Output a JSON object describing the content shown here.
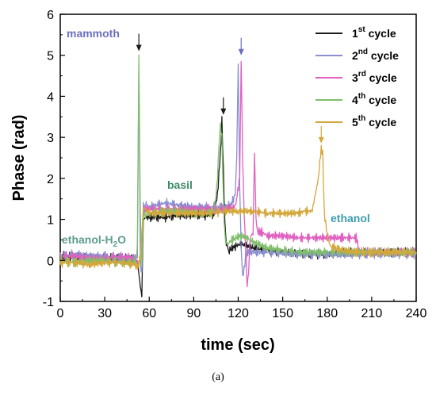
{
  "chart_data": {
    "type": "line",
    "xlabel": "time (sec)",
    "ylabel": "Phase (rad)",
    "xlim": [
      0,
      240
    ],
    "ylim": [
      -1,
      6
    ],
    "xticks": [
      0,
      30,
      60,
      90,
      120,
      150,
      180,
      210,
      240
    ],
    "yticks": [
      -1,
      0,
      1,
      2,
      3,
      4,
      5,
      6
    ],
    "panel_label": "(a)",
    "legend_position": "top-right",
    "series": [
      {
        "name": "1st cycle",
        "name_main": "1",
        "name_sup": "st",
        "name_rest": "cycle",
        "color": "#1a1a1a",
        "x": [
          0,
          10,
          20,
          30,
          40,
          50,
          52,
          53,
          54,
          55,
          56,
          58,
          60,
          70,
          80,
          90,
          100,
          104,
          106,
          108,
          109,
          110,
          111,
          112,
          114,
          118,
          122,
          126,
          130,
          140,
          150,
          160,
          170,
          180,
          190,
          200,
          210,
          220,
          230,
          240
        ],
        "y": [
          0.1,
          0.1,
          0.05,
          0.05,
          0.05,
          0.05,
          0.0,
          -0.3,
          -0.6,
          -0.85,
          1.0,
          1.05,
          1.05,
          1.05,
          1.1,
          1.1,
          1.1,
          1.15,
          1.6,
          2.6,
          3.4,
          2.2,
          0.9,
          0.4,
          0.25,
          0.35,
          0.4,
          0.35,
          0.3,
          0.25,
          0.2,
          0.18,
          0.15,
          0.15,
          0.2,
          0.2,
          0.2,
          0.2,
          0.2,
          0.2
        ]
      },
      {
        "name": "2nd cycle",
        "name_main": "2",
        "name_sup": "nd",
        "name_rest": "cycle",
        "color": "#8a8fd0",
        "x": [
          0,
          10,
          20,
          30,
          40,
          50,
          52,
          53,
          54,
          55,
          56,
          58,
          60,
          70,
          80,
          90,
          100,
          110,
          115,
          118,
          119,
          120,
          121,
          122,
          123,
          124,
          125,
          126,
          130,
          140,
          150,
          160,
          170,
          180,
          190,
          200,
          210,
          220,
          230,
          240
        ],
        "y": [
          0.1,
          0.15,
          0.1,
          0.1,
          0.05,
          0.05,
          0.1,
          4.8,
          0.0,
          -0.4,
          1.3,
          1.35,
          1.3,
          1.4,
          1.35,
          1.3,
          1.3,
          1.3,
          1.35,
          1.6,
          2.5,
          4.8,
          1.8,
          0.3,
          -0.4,
          -0.2,
          0.1,
          0.2,
          0.2,
          0.2,
          0.18,
          0.15,
          0.15,
          0.15,
          0.15,
          0.15,
          0.15,
          0.15,
          0.15,
          0.15
        ]
      },
      {
        "name": "3rd cycle",
        "name_main": "3",
        "name_sup": "rd",
        "name_rest": "cycle",
        "color": "#e060c0",
        "x": [
          0,
          10,
          20,
          30,
          40,
          50,
          52,
          53,
          54,
          55,
          56,
          58,
          60,
          70,
          80,
          90,
          100,
          110,
          118,
          121,
          122,
          123,
          124,
          125,
          126,
          127,
          128,
          129,
          130,
          131,
          132,
          133,
          135,
          140,
          150,
          160,
          170,
          180,
          190,
          200,
          201,
          205,
          210,
          220,
          230,
          240
        ],
        "y": [
          0.1,
          0.1,
          0.05,
          0.05,
          0.1,
          0.05,
          0.0,
          -0.1,
          0.1,
          0.5,
          1.2,
          1.25,
          1.25,
          1.25,
          1.25,
          1.25,
          1.25,
          1.25,
          1.3,
          2.0,
          4.9,
          2.5,
          1.2,
          0.3,
          -0.6,
          -0.3,
          0.5,
          0.6,
          0.6,
          2.6,
          1.0,
          0.7,
          0.7,
          0.6,
          0.6,
          0.55,
          0.55,
          0.55,
          0.55,
          0.55,
          0.25,
          0.2,
          0.2,
          0.2,
          0.2,
          0.2
        ]
      },
      {
        "name": "4th cycle",
        "name_main": "4",
        "name_sup": "th",
        "name_rest": "cycle",
        "color": "#7fbf6a",
        "x": [
          0,
          10,
          20,
          30,
          40,
          50,
          51,
          52,
          53,
          54,
          55,
          56,
          58,
          60,
          70,
          80,
          90,
          100,
          104,
          106,
          107,
          108,
          109,
          110,
          111,
          112,
          114,
          118,
          122,
          126,
          130,
          140,
          150,
          160,
          170,
          180,
          190,
          200,
          210,
          220,
          230,
          240
        ],
        "y": [
          0.0,
          -0.05,
          0.0,
          0.0,
          -0.05,
          -0.05,
          0.0,
          0.3,
          4.95,
          1.2,
          -0.1,
          1.1,
          1.15,
          1.15,
          1.2,
          1.2,
          1.15,
          1.15,
          1.2,
          2.0,
          2.8,
          3.3,
          3.0,
          1.5,
          0.6,
          0.4,
          0.45,
          0.55,
          0.6,
          0.55,
          0.45,
          0.3,
          0.25,
          0.2,
          0.2,
          0.2,
          0.2,
          0.2,
          0.2,
          0.2,
          0.2,
          0.2
        ]
      },
      {
        "name": "5th cycle",
        "name_main": "5",
        "name_sup": "th",
        "name_rest": "cycle",
        "color": "#d4a73a",
        "x": [
          0,
          10,
          20,
          30,
          40,
          50,
          52,
          53,
          54,
          55,
          56,
          58,
          60,
          70,
          80,
          90,
          100,
          110,
          120,
          130,
          140,
          150,
          160,
          165,
          170,
          171,
          172,
          174,
          176,
          177,
          178,
          180,
          182,
          185,
          190,
          200,
          210,
          220,
          230,
          240
        ],
        "y": [
          -0.05,
          -0.05,
          -0.1,
          -0.05,
          -0.05,
          -0.1,
          -0.15,
          -0.1,
          0.1,
          0.5,
          1.3,
          1.2,
          1.15,
          1.15,
          1.15,
          1.15,
          1.15,
          1.2,
          1.2,
          1.2,
          1.15,
          1.15,
          1.15,
          1.2,
          1.2,
          1.4,
          1.6,
          2.0,
          2.75,
          2.6,
          1.2,
          0.6,
          0.35,
          0.3,
          0.25,
          0.2,
          0.2,
          0.2,
          0.2,
          0.2
        ]
      }
    ],
    "annotations": [
      {
        "id": "mammoth",
        "text": "mammoth",
        "color": "#6b6ec0"
      },
      {
        "id": "ethanol-h2o",
        "text_main": "ethanol-H",
        "text_sub": "2",
        "text_tail": "O",
        "color": "#5e9c8c"
      },
      {
        "id": "basil",
        "text": "basil",
        "color": "#3d8b68"
      },
      {
        "id": "ethanol",
        "text": "ethanol",
        "color": "#3c9cae"
      }
    ],
    "arrows": [
      {
        "x": 53,
        "y": 5.1,
        "color": "#1a1a1a"
      },
      {
        "x": 110,
        "y": 3.55,
        "color": "#1a1a1a"
      },
      {
        "x": 122,
        "y": 5.0,
        "color": "#6b6ec0"
      },
      {
        "x": 176,
        "y": 2.85,
        "color": "#d4a73a"
      }
    ]
  }
}
